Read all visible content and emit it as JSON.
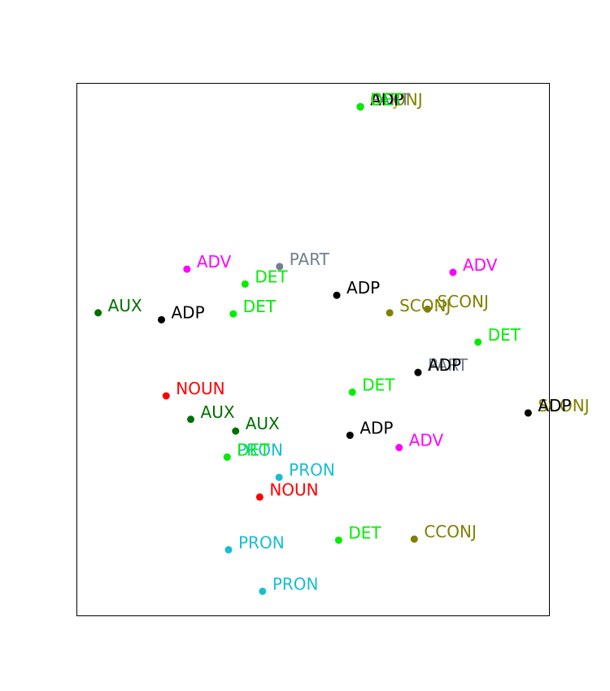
{
  "chart_data": {
    "type": "scatter",
    "title": "",
    "xlabel": "",
    "ylabel": "",
    "axes_visible": false,
    "grid": false,
    "legend": "none",
    "xlim": [
      0,
      100
    ],
    "ylim": [
      0,
      100
    ],
    "colors": {
      "ADV": "#ff00ff",
      "DET": "#00ee00",
      "PART": "#708090",
      "ADP": "#000000",
      "AUX": "#007000",
      "SCONJ": "#808000",
      "CCONJ": "#808000",
      "NOUN": "#ff0000",
      "PRON": "#17becf",
      "ADJ": "#d4a017"
    },
    "points": [
      {
        "label": "ADJ",
        "x": 60.0,
        "y": 95.6
      },
      {
        "label": "CCONJ",
        "x": 60.0,
        "y": 95.6
      },
      {
        "label": "PART",
        "x": 60.0,
        "y": 95.6
      },
      {
        "label": "ADP",
        "x": 60.0,
        "y": 95.6
      },
      {
        "label": "DET",
        "x": 60.0,
        "y": 95.6
      },
      {
        "label": "ADV",
        "x": 23.3,
        "y": 65.1
      },
      {
        "label": "PART",
        "x": 42.9,
        "y": 65.6
      },
      {
        "label": "DET",
        "x": 35.6,
        "y": 62.3
      },
      {
        "label": "ADV",
        "x": 79.6,
        "y": 64.5
      },
      {
        "label": "ADP",
        "x": 55.0,
        "y": 60.2
      },
      {
        "label": "AUX",
        "x": 4.5,
        "y": 56.9
      },
      {
        "label": "ADP",
        "x": 17.9,
        "y": 55.6
      },
      {
        "label": "DET",
        "x": 33.1,
        "y": 56.7
      },
      {
        "label": "SCONJ",
        "x": 74.2,
        "y": 57.6
      },
      {
        "label": "SCONJ",
        "x": 66.2,
        "y": 56.9
      },
      {
        "label": "DET",
        "x": 84.9,
        "y": 51.4
      },
      {
        "label": "PART",
        "x": 72.2,
        "y": 45.7
      },
      {
        "label": "ADP",
        "x": 72.2,
        "y": 45.7
      },
      {
        "label": "DET",
        "x": 58.3,
        "y": 42.0
      },
      {
        "label": "NOUN",
        "x": 18.9,
        "y": 41.3
      },
      {
        "label": "SCONJ",
        "x": 95.5,
        "y": 38.1
      },
      {
        "label": "ADP",
        "x": 95.5,
        "y": 38.1
      },
      {
        "label": "AUX",
        "x": 24.1,
        "y": 36.9
      },
      {
        "label": "AUX",
        "x": 33.6,
        "y": 34.7
      },
      {
        "label": "ADP",
        "x": 57.8,
        "y": 33.9
      },
      {
        "label": "ADV",
        "x": 68.2,
        "y": 31.6
      },
      {
        "label": "PRON",
        "x": 31.8,
        "y": 29.8
      },
      {
        "label": "DET",
        "x": 31.8,
        "y": 29.8
      },
      {
        "label": "PRON",
        "x": 42.8,
        "y": 26.0
      },
      {
        "label": "NOUN",
        "x": 38.7,
        "y": 22.3
      },
      {
        "label": "DET",
        "x": 55.4,
        "y": 14.2
      },
      {
        "label": "CCONJ",
        "x": 71.4,
        "y": 14.4
      },
      {
        "label": "PRON",
        "x": 32.1,
        "y": 12.4
      },
      {
        "label": "PRON",
        "x": 39.3,
        "y": 4.6
      }
    ]
  }
}
